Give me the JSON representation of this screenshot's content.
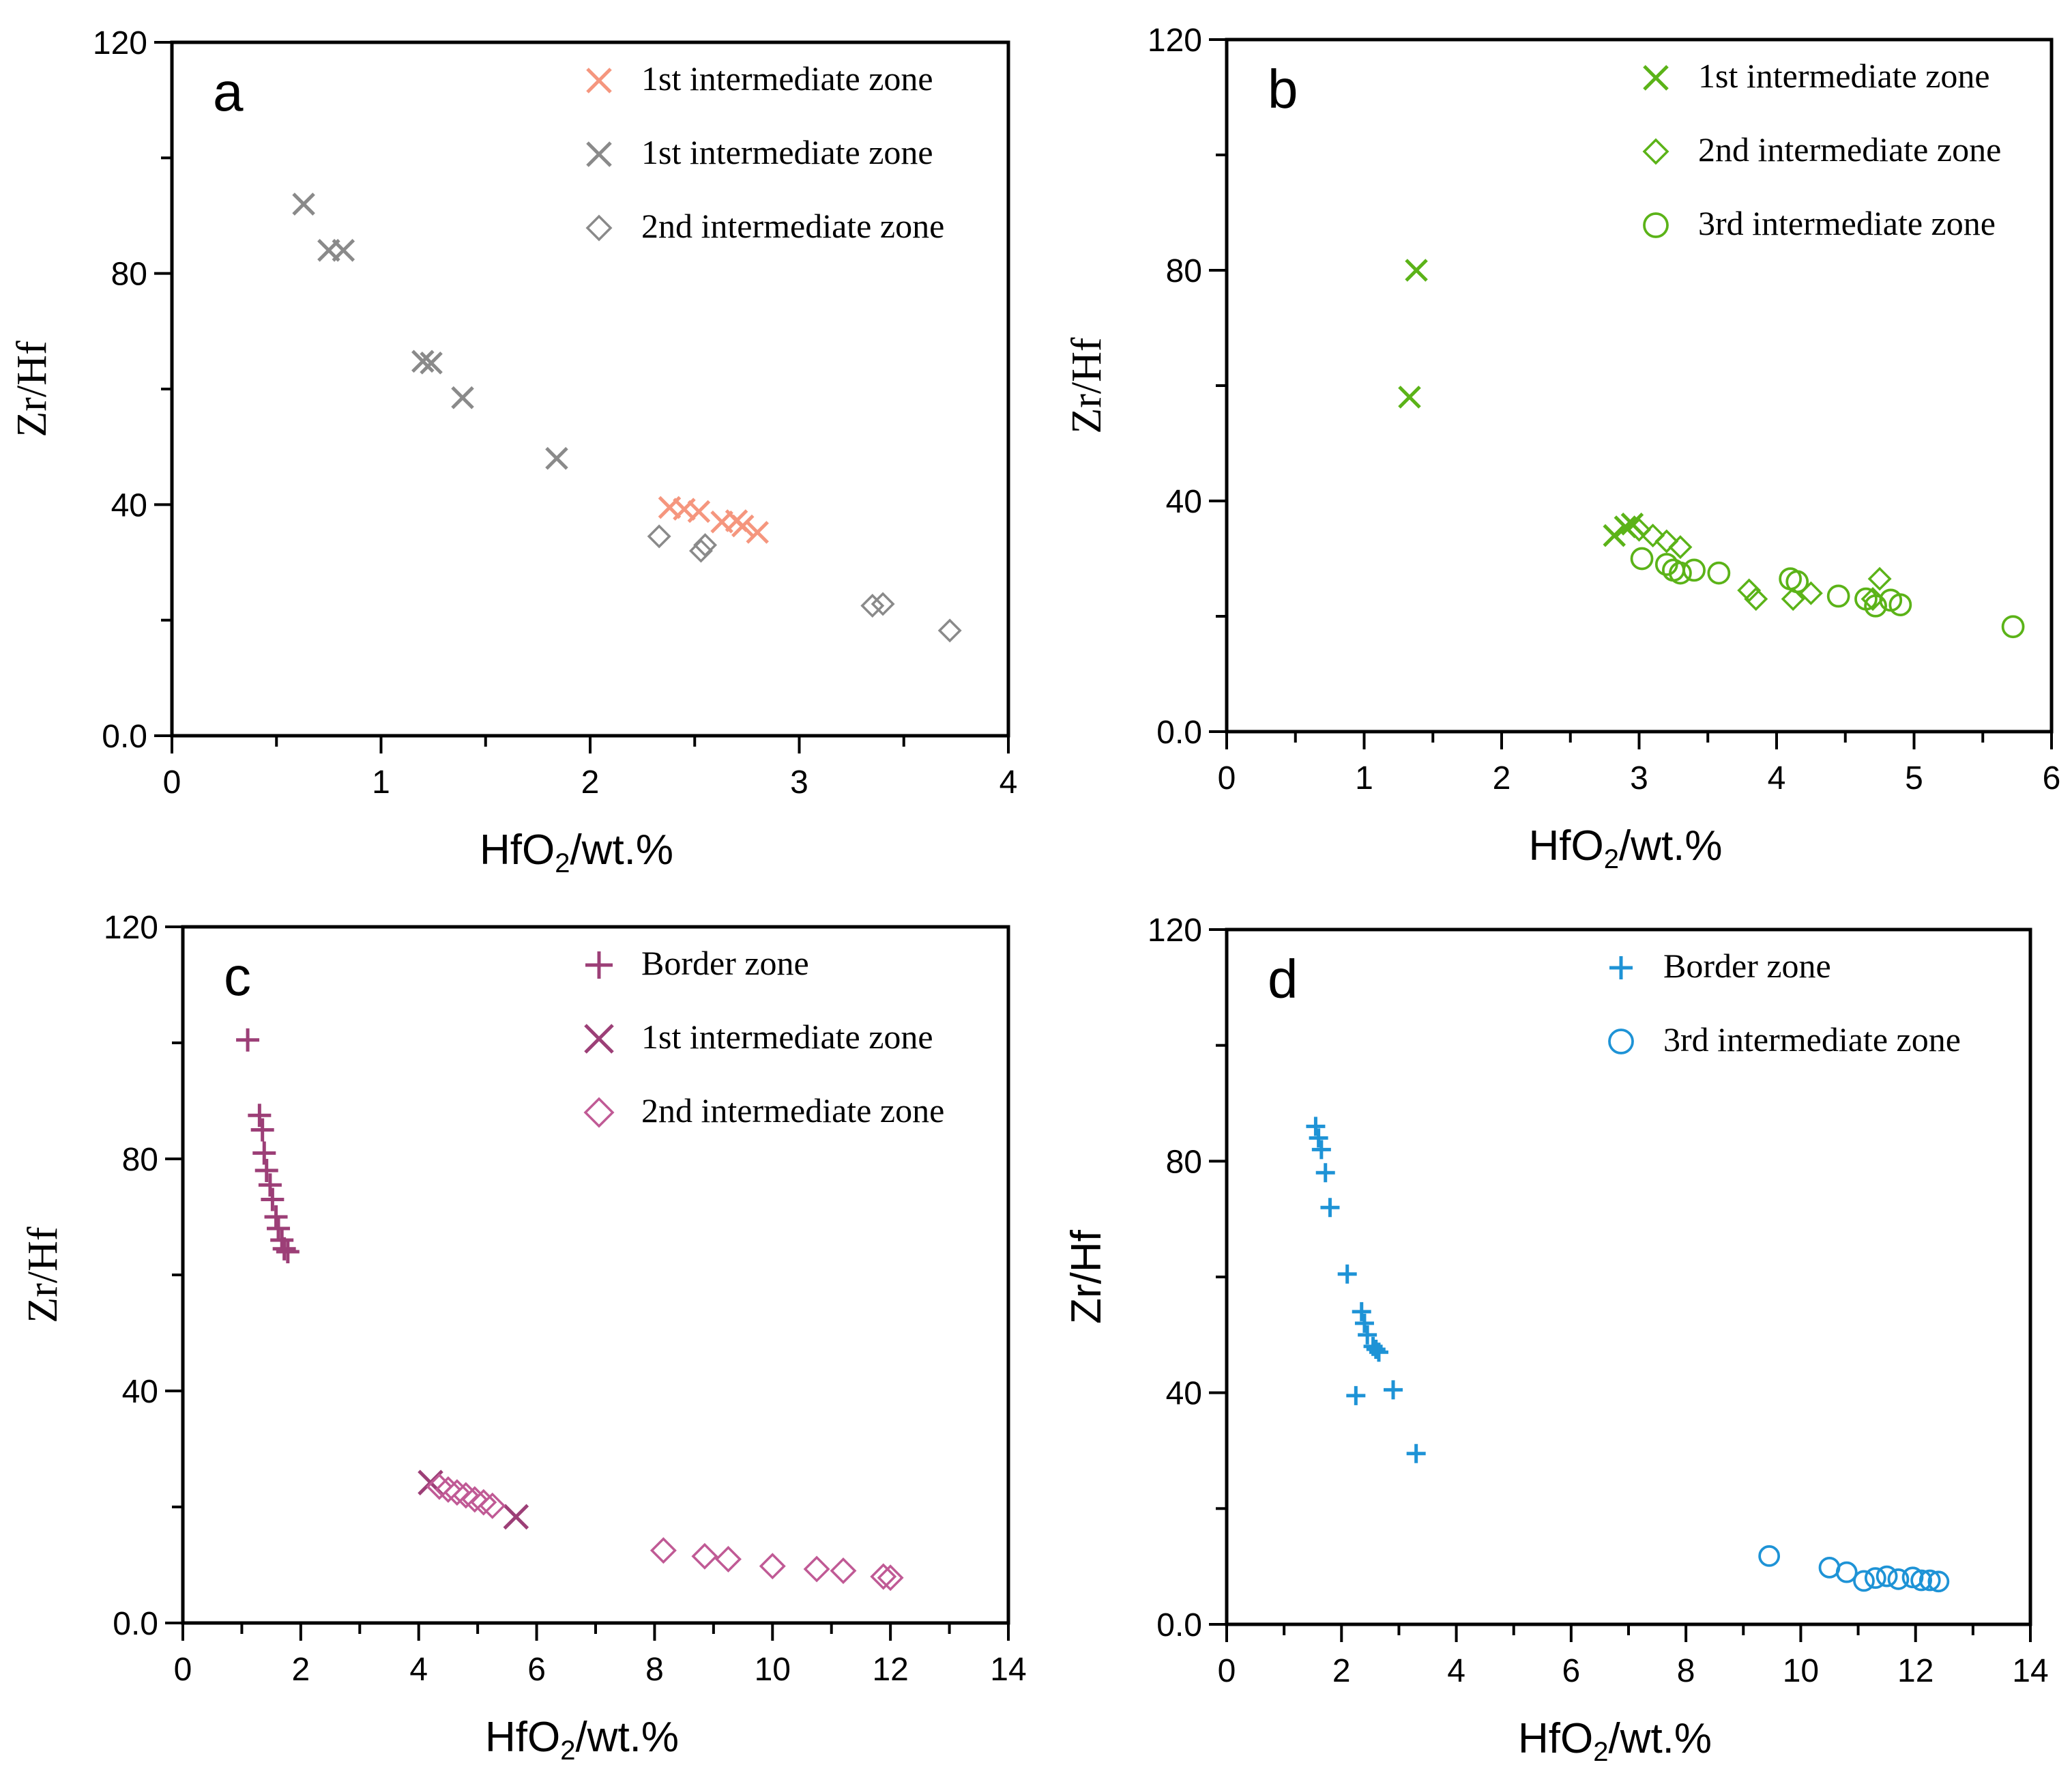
{
  "chart_data": [
    {
      "type": "scatter",
      "panel": "a",
      "xlabel_main": "HfO",
      "xlabel_sub": "2",
      "xlabel_rest": "/wt.%",
      "ylabel": "Zr/Hf",
      "xlim": [
        0,
        4
      ],
      "ylim": [
        0,
        120
      ],
      "xticks": [
        0,
        1,
        2,
        3,
        4
      ],
      "xtick_labels": [
        "0",
        "1",
        "2",
        "3",
        "4"
      ],
      "yticks": [
        0,
        40,
        80,
        120
      ],
      "ytick_labels": [
        "0.0",
        "40",
        "80",
        "120"
      ],
      "legend_position": "top-right",
      "series": [
        {
          "name": "1st intermediate zone",
          "marker": "x",
          "color": "#f5967e",
          "x": [
            2.38,
            2.45,
            2.52,
            2.63,
            2.7,
            2.73,
            2.8
          ],
          "y": [
            39.5,
            39.2,
            38.8,
            37.0,
            37.2,
            36.3,
            35.2
          ]
        },
        {
          "name": "1st intermediate zone",
          "marker": "x",
          "color": "#8a8a8a",
          "x": [
            0.63,
            0.75,
            0.82,
            1.2,
            1.24,
            1.39,
            1.84
          ],
          "y": [
            92,
            84,
            84,
            64.8,
            64.5,
            58.5,
            48
          ]
        },
        {
          "name": "2nd intermediate zone",
          "marker": "diamond",
          "color": "#8a8a8a",
          "x": [
            2.33,
            2.53,
            2.55,
            3.35,
            3.4,
            3.72
          ],
          "y": [
            34.5,
            32.0,
            33.0,
            22.5,
            22.8,
            18.2
          ]
        }
      ]
    },
    {
      "type": "scatter",
      "panel": "b",
      "xlabel_main": "HfO",
      "xlabel_sub": "2",
      "xlabel_rest": "/wt.%",
      "ylabel": "Zr/Hf",
      "xlim": [
        0,
        6
      ],
      "ylim": [
        0,
        120
      ],
      "xticks": [
        0,
        1,
        2,
        3,
        4,
        5,
        6
      ],
      "xtick_labels": [
        "0",
        "1",
        "2",
        "3",
        "4",
        "5",
        "6"
      ],
      "yticks": [
        0,
        40,
        80,
        120
      ],
      "ytick_labels": [
        "0.0",
        "40",
        "80",
        "120"
      ],
      "legend_position": "top-right",
      "series": [
        {
          "name": "1st intermediate zone",
          "marker": "x",
          "color": "#5bb318",
          "x": [
            1.38,
            1.33,
            2.82,
            2.9,
            2.95
          ],
          "y": [
            80,
            58,
            34,
            35.5,
            36
          ]
        },
        {
          "name": "2nd intermediate zone",
          "marker": "diamond",
          "color": "#5bb318",
          "x": [
            3.0,
            3.1,
            3.2,
            3.3,
            3.8,
            3.85,
            4.12,
            4.25,
            4.7,
            4.75
          ],
          "y": [
            35,
            34,
            33,
            32,
            24.5,
            23,
            23,
            24,
            23,
            26.5
          ]
        },
        {
          "name": "3rd intermediate zone",
          "marker": "circle",
          "color": "#5bb318",
          "x": [
            3.02,
            3.2,
            3.25,
            3.3,
            3.4,
            3.58,
            4.1,
            4.15,
            4.45,
            4.65,
            4.72,
            4.83,
            4.9,
            5.72
          ],
          "y": [
            30,
            29,
            28,
            27.5,
            28,
            27.5,
            26.5,
            26.0,
            23.5,
            23.0,
            21.8,
            22.8,
            22.0,
            18.2
          ]
        }
      ]
    },
    {
      "type": "scatter",
      "panel": "c",
      "xlabel_main": "HfO",
      "xlabel_sub": "2",
      "xlabel_rest": "/wt.%",
      "ylabel": "Zr/Hf",
      "xlim": [
        0,
        14
      ],
      "ylim": [
        0,
        120
      ],
      "xticks": [
        0,
        2,
        4,
        6,
        8,
        10,
        12,
        14
      ],
      "xtick_labels": [
        "0",
        "2",
        "4",
        "6",
        "8",
        "10",
        "12",
        "14"
      ],
      "yticks": [
        0,
        40,
        80,
        120
      ],
      "ytick_labels": [
        "0.0",
        "40",
        "80",
        "120"
      ],
      "legend_position": "top-right",
      "series": [
        {
          "name": "Border zone",
          "marker": "plus",
          "color": "#9c3f77",
          "x": [
            1.1,
            1.3,
            1.35,
            1.38,
            1.42,
            1.48,
            1.52,
            1.58,
            1.62,
            1.68,
            1.72,
            1.78
          ],
          "y": [
            100.5,
            87.5,
            85,
            81,
            78,
            75.5,
            73,
            70,
            68,
            66,
            64.5,
            64
          ]
        },
        {
          "name": "1st intermediate zone",
          "marker": "x",
          "color": "#9c3f77",
          "x": [
            4.2,
            5.65
          ],
          "y": [
            24.2,
            18.3
          ]
        },
        {
          "name": "2nd intermediate zone",
          "marker": "diamond",
          "color": "#c05a95",
          "x": [
            4.35,
            4.5,
            4.65,
            4.8,
            4.95,
            5.1,
            5.25,
            8.15,
            8.85,
            9.25,
            10.0,
            10.75,
            11.2,
            11.88,
            12.0
          ],
          "y": [
            23.5,
            23.0,
            22.5,
            22.0,
            21.3,
            20.8,
            20.2,
            12.5,
            11.5,
            11.0,
            9.8,
            9.3,
            9.0,
            8.0,
            7.8
          ]
        }
      ]
    },
    {
      "type": "scatter",
      "panel": "d",
      "xlabel_main": "HfO",
      "xlabel_sub": "2",
      "xlabel_rest": "/wt.%",
      "ylabel": "Zr/Hf",
      "xlim": [
        0,
        14
      ],
      "ylim": [
        0,
        120
      ],
      "xticks": [
        0,
        2,
        4,
        6,
        8,
        10,
        12,
        14
      ],
      "xtick_labels": [
        "0",
        "2",
        "4",
        "6",
        "8",
        "10",
        "12",
        "14"
      ],
      "yticks": [
        0,
        40,
        80,
        120
      ],
      "ytick_labels": [
        "0.0",
        "40",
        "80",
        "120"
      ],
      "legend_position": "top-right",
      "series": [
        {
          "name": "Border zone",
          "marker": "plus",
          "color": "#1e93d6",
          "x": [
            1.55,
            1.6,
            1.65,
            1.72,
            1.8,
            2.1,
            2.35,
            2.4,
            2.45,
            2.55,
            2.6,
            2.65,
            2.25,
            2.9,
            3.3
          ],
          "y": [
            86,
            84,
            82,
            78,
            72,
            60.5,
            54,
            52,
            50,
            48,
            47.5,
            47,
            39.5,
            40.5,
            29.5
          ]
        },
        {
          "name": "3rd intermediate zone",
          "marker": "circle",
          "color": "#1e93d6",
          "x": [
            9.45,
            10.5,
            10.8,
            11.1,
            11.3,
            11.5,
            11.7,
            11.95,
            12.1,
            12.25,
            12.4
          ],
          "y": [
            11.8,
            9.8,
            9.0,
            7.5,
            8.0,
            8.3,
            7.8,
            8.1,
            7.6,
            7.6,
            7.4
          ]
        }
      ]
    }
  ]
}
